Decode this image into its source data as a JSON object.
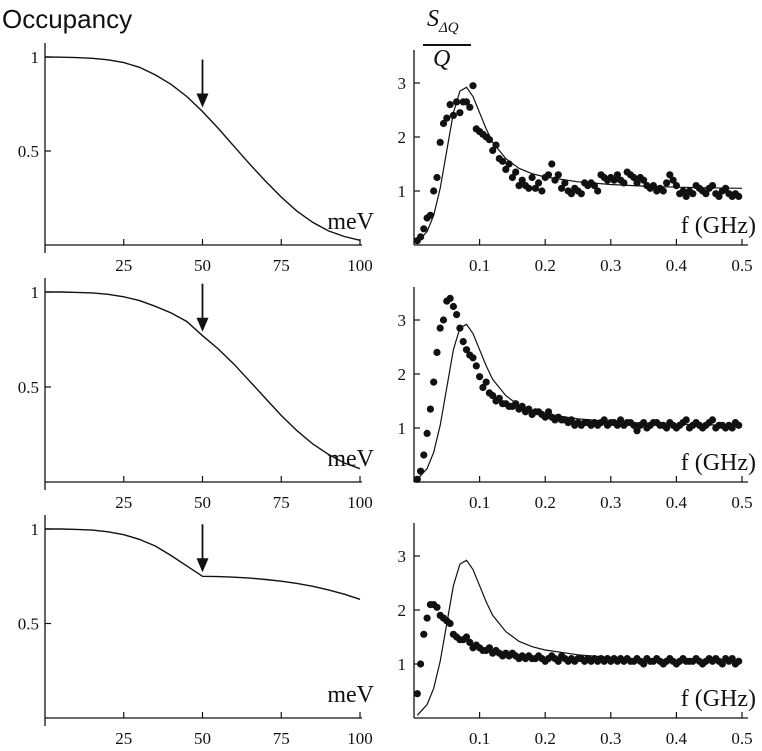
{
  "figure": {
    "title": "Occupancy",
    "right_ylabel": {
      "numerator": "S",
      "subscript": "ΔQ",
      "denominator": "Q"
    }
  },
  "chart_data": [
    {
      "type": "line",
      "panel": "left-top",
      "unit_label": "meV",
      "xlim": [
        0,
        100
      ],
      "ylim": [
        0,
        1
      ],
      "xticks": [
        25,
        50,
        75,
        100
      ],
      "yticks": [
        0.5,
        1
      ],
      "ytick_labels": [
        "0.5",
        "1"
      ],
      "xtick_labels": [
        "25",
        "50",
        "75",
        "100"
      ],
      "arrow_x": 50,
      "series": [
        {
          "x": [
            0,
            5,
            10,
            15,
            20,
            25,
            30,
            35,
            40,
            45,
            50,
            55,
            60,
            65,
            70,
            75,
            80,
            85,
            90,
            95,
            100
          ],
          "values": [
            1.0,
            0.999,
            0.997,
            0.993,
            0.985,
            0.97,
            0.945,
            0.905,
            0.855,
            0.79,
            0.71,
            0.62,
            0.525,
            0.43,
            0.34,
            0.255,
            0.18,
            0.12,
            0.075,
            0.045,
            0.025
          ]
        }
      ]
    },
    {
      "type": "scatter",
      "panel": "right-top",
      "x_label": "f (GHz)",
      "xlim": [
        0,
        0.5
      ],
      "ylim": [
        0,
        3.5
      ],
      "xticks": [
        0.1,
        0.2,
        0.3,
        0.4,
        0.5
      ],
      "yticks": [
        1,
        2,
        3
      ],
      "xtick_labels": [
        "0.1",
        "0.2",
        "0.3",
        "0.4",
        "0.5"
      ],
      "ytick_labels": [
        "1",
        "2",
        "3"
      ],
      "model": {
        "x": [
          0.005,
          0.02,
          0.03,
          0.04,
          0.05,
          0.06,
          0.07,
          0.08,
          0.09,
          0.1,
          0.11,
          0.12,
          0.14,
          0.16,
          0.18,
          0.2,
          0.25,
          0.3,
          0.35,
          0.4,
          0.45,
          0.5
        ],
        "values": [
          0.05,
          0.25,
          0.55,
          1.05,
          1.75,
          2.45,
          2.85,
          2.92,
          2.75,
          2.45,
          2.15,
          1.9,
          1.6,
          1.42,
          1.32,
          1.26,
          1.17,
          1.12,
          1.09,
          1.07,
          1.06,
          1.05
        ]
      },
      "points": {
        "x": [
          0.005,
          0.01,
          0.015,
          0.02,
          0.025,
          0.03,
          0.035,
          0.04,
          0.045,
          0.05,
          0.055,
          0.06,
          0.065,
          0.07,
          0.075,
          0.08,
          0.085,
          0.09,
          0.095,
          0.1,
          0.105,
          0.11,
          0.115,
          0.12,
          0.125,
          0.13,
          0.135,
          0.14,
          0.145,
          0.15,
          0.155,
          0.16,
          0.165,
          0.17,
          0.175,
          0.18,
          0.185,
          0.19,
          0.195,
          0.2,
          0.205,
          0.21,
          0.215,
          0.22,
          0.225,
          0.23,
          0.235,
          0.24,
          0.245,
          0.25,
          0.255,
          0.26,
          0.265,
          0.27,
          0.275,
          0.28,
          0.285,
          0.29,
          0.295,
          0.3,
          0.305,
          0.31,
          0.315,
          0.32,
          0.325,
          0.33,
          0.335,
          0.34,
          0.345,
          0.35,
          0.355,
          0.36,
          0.365,
          0.37,
          0.375,
          0.38,
          0.385,
          0.39,
          0.395,
          0.4,
          0.405,
          0.41,
          0.415,
          0.42,
          0.425,
          0.43,
          0.435,
          0.44,
          0.445,
          0.45,
          0.455,
          0.46,
          0.465,
          0.47,
          0.475,
          0.48,
          0.485,
          0.49,
          0.495
        ],
        "values": [
          0.08,
          0.15,
          0.3,
          0.5,
          0.55,
          1.0,
          1.25,
          1.9,
          2.25,
          2.35,
          2.6,
          2.4,
          2.65,
          2.45,
          2.65,
          2.65,
          2.55,
          2.95,
          2.15,
          2.1,
          2.05,
          2.0,
          1.95,
          1.75,
          1.85,
          1.6,
          1.55,
          1.4,
          1.5,
          1.25,
          1.35,
          1.1,
          1.2,
          1.1,
          1.05,
          1.25,
          1.05,
          1.15,
          1.0,
          1.25,
          1.3,
          1.5,
          1.2,
          1.3,
          1.05,
          1.15,
          1.0,
          0.95,
          1.05,
          1.0,
          0.95,
          1.15,
          1.1,
          1.15,
          1.1,
          1.0,
          1.3,
          1.25,
          1.2,
          1.25,
          1.2,
          1.3,
          1.2,
          1.15,
          1.35,
          1.3,
          1.25,
          1.15,
          1.25,
          1.2,
          1.1,
          1.05,
          1.1,
          1.0,
          1.05,
          1.0,
          1.15,
          1.3,
          1.2,
          1.1,
          0.95,
          1.0,
          0.9,
          1.0,
          0.95,
          1.1,
          1.05,
          1.0,
          0.95,
          1.05,
          1.1,
          0.95,
          0.9,
          1.0,
          1.05,
          0.95,
          0.9,
          0.95,
          0.9
        ]
      }
    },
    {
      "type": "line",
      "panel": "left-middle",
      "unit_label": "meV",
      "xlim": [
        0,
        100
      ],
      "ylim": [
        0,
        1
      ],
      "xticks": [
        25,
        50,
        75,
        100
      ],
      "yticks": [
        0.5,
        1
      ],
      "ytick_labels": [
        "0.5",
        "1"
      ],
      "xtick_labels": [
        "25",
        "50",
        "75",
        "100"
      ],
      "arrow_x": 50,
      "series": [
        {
          "x": [
            0,
            5,
            10,
            15,
            20,
            25,
            30,
            35,
            40,
            45,
            50,
            55,
            60,
            65,
            70,
            75,
            80,
            85,
            90,
            95,
            100
          ],
          "values": [
            1.0,
            1.0,
            0.998,
            0.995,
            0.988,
            0.975,
            0.955,
            0.925,
            0.89,
            0.845,
            0.77,
            0.7,
            0.62,
            0.53,
            0.44,
            0.35,
            0.27,
            0.2,
            0.145,
            0.1,
            0.07
          ]
        }
      ]
    },
    {
      "type": "scatter",
      "panel": "right-middle",
      "x_label": "f (GHz)",
      "xlim": [
        0,
        0.5
      ],
      "ylim": [
        0,
        3.5
      ],
      "xticks": [
        0.1,
        0.2,
        0.3,
        0.4,
        0.5
      ],
      "yticks": [
        1,
        2,
        3
      ],
      "xtick_labels": [
        "0.1",
        "0.2",
        "0.3",
        "0.4",
        "0.5"
      ],
      "ytick_labels": [
        "1",
        "2",
        "3"
      ],
      "model": {
        "x": [
          0.005,
          0.02,
          0.03,
          0.04,
          0.05,
          0.06,
          0.07,
          0.08,
          0.09,
          0.1,
          0.11,
          0.12,
          0.14,
          0.16,
          0.18,
          0.2,
          0.25,
          0.3,
          0.35,
          0.4,
          0.45,
          0.5
        ],
        "values": [
          0.05,
          0.25,
          0.55,
          1.05,
          1.75,
          2.45,
          2.85,
          2.92,
          2.75,
          2.45,
          2.15,
          1.9,
          1.6,
          1.42,
          1.32,
          1.26,
          1.17,
          1.12,
          1.09,
          1.07,
          1.06,
          1.05
        ]
      },
      "points": {
        "x": [
          0.005,
          0.01,
          0.015,
          0.02,
          0.025,
          0.03,
          0.035,
          0.04,
          0.045,
          0.05,
          0.055,
          0.06,
          0.065,
          0.07,
          0.075,
          0.08,
          0.085,
          0.09,
          0.095,
          0.1,
          0.105,
          0.11,
          0.115,
          0.12,
          0.125,
          0.13,
          0.135,
          0.14,
          0.145,
          0.15,
          0.155,
          0.16,
          0.165,
          0.17,
          0.175,
          0.18,
          0.185,
          0.19,
          0.195,
          0.2,
          0.205,
          0.21,
          0.215,
          0.22,
          0.225,
          0.23,
          0.235,
          0.24,
          0.245,
          0.25,
          0.255,
          0.26,
          0.265,
          0.27,
          0.275,
          0.28,
          0.285,
          0.29,
          0.295,
          0.3,
          0.305,
          0.31,
          0.315,
          0.32,
          0.325,
          0.33,
          0.335,
          0.34,
          0.345,
          0.35,
          0.355,
          0.36,
          0.365,
          0.37,
          0.375,
          0.38,
          0.385,
          0.39,
          0.395,
          0.4,
          0.405,
          0.41,
          0.415,
          0.42,
          0.425,
          0.43,
          0.435,
          0.44,
          0.445,
          0.45,
          0.455,
          0.46,
          0.465,
          0.47,
          0.475,
          0.48,
          0.485,
          0.49,
          0.495
        ],
        "values": [
          0.05,
          0.2,
          0.5,
          0.9,
          1.35,
          1.85,
          2.4,
          2.85,
          3.0,
          3.35,
          3.4,
          3.25,
          3.1,
          2.85,
          2.6,
          2.45,
          2.35,
          2.3,
          2.15,
          1.95,
          1.75,
          1.85,
          1.65,
          1.6,
          1.5,
          1.55,
          1.45,
          1.45,
          1.4,
          1.4,
          1.45,
          1.35,
          1.4,
          1.3,
          1.35,
          1.25,
          1.3,
          1.3,
          1.25,
          1.2,
          1.3,
          1.2,
          1.15,
          1.2,
          1.15,
          1.15,
          1.1,
          1.15,
          1.05,
          1.1,
          1.05,
          1.1,
          1.1,
          1.05,
          1.1,
          1.05,
          1.1,
          1.15,
          1.05,
          1.1,
          1.1,
          1.05,
          1.15,
          1.05,
          1.1,
          1.1,
          1.05,
          0.95,
          1.05,
          1.1,
          1.0,
          1.05,
          1.1,
          1.1,
          1.05,
          1.05,
          1.0,
          1.1,
          1.05,
          1.0,
          1.05,
          1.1,
          1.15,
          1.0,
          1.05,
          1.1,
          1.05,
          1.0,
          1.05,
          1.1,
          1.15,
          1.0,
          1.05,
          1.05,
          1.0,
          1.05,
          1.0,
          1.1,
          1.05
        ]
      }
    },
    {
      "type": "line",
      "panel": "left-bottom",
      "unit_label": "meV",
      "xlim": [
        0,
        100
      ],
      "ylim": [
        0,
        1
      ],
      "xticks": [
        25,
        50,
        75,
        100
      ],
      "yticks": [
        0.5,
        1
      ],
      "ytick_labels": [
        "0.5",
        "1"
      ],
      "xtick_labels": [
        "25",
        "50",
        "75",
        "100"
      ],
      "arrow_x": 50,
      "series": [
        {
          "x": [
            0,
            5,
            10,
            15,
            20,
            25,
            30,
            35,
            40,
            45,
            50,
            55,
            60,
            65,
            70,
            75,
            80,
            85,
            90,
            95,
            100
          ],
          "values": [
            1.0,
            1.0,
            0.998,
            0.994,
            0.985,
            0.97,
            0.945,
            0.91,
            0.86,
            0.805,
            0.75,
            0.748,
            0.745,
            0.74,
            0.733,
            0.724,
            0.712,
            0.697,
            0.678,
            0.655,
            0.628
          ]
        }
      ]
    },
    {
      "type": "scatter",
      "panel": "right-bottom",
      "x_label": "f (GHz)",
      "xlim": [
        0,
        0.5
      ],
      "ylim": [
        0,
        3.5
      ],
      "xticks": [
        0.1,
        0.2,
        0.3,
        0.4,
        0.5
      ],
      "yticks": [
        1,
        2,
        3
      ],
      "xtick_labels": [
        "0.1",
        "0.2",
        "0.3",
        "0.4",
        "0.5"
      ],
      "ytick_labels": [
        "1",
        "2",
        "3"
      ],
      "model": {
        "x": [
          0.005,
          0.02,
          0.03,
          0.04,
          0.05,
          0.06,
          0.07,
          0.08,
          0.09,
          0.1,
          0.11,
          0.12,
          0.14,
          0.16,
          0.18,
          0.2,
          0.25,
          0.3,
          0.35,
          0.4,
          0.45,
          0.5
        ],
        "values": [
          0.05,
          0.25,
          0.55,
          1.05,
          1.75,
          2.45,
          2.85,
          2.92,
          2.75,
          2.45,
          2.15,
          1.9,
          1.6,
          1.42,
          1.32,
          1.26,
          1.17,
          1.12,
          1.09,
          1.07,
          1.06,
          1.05
        ]
      },
      "points": {
        "x": [
          0.005,
          0.01,
          0.015,
          0.02,
          0.025,
          0.03,
          0.035,
          0.04,
          0.045,
          0.05,
          0.055,
          0.06,
          0.065,
          0.07,
          0.075,
          0.08,
          0.085,
          0.09,
          0.095,
          0.1,
          0.105,
          0.11,
          0.115,
          0.12,
          0.125,
          0.13,
          0.135,
          0.14,
          0.145,
          0.15,
          0.155,
          0.16,
          0.165,
          0.17,
          0.175,
          0.18,
          0.185,
          0.19,
          0.195,
          0.2,
          0.205,
          0.21,
          0.215,
          0.22,
          0.225,
          0.23,
          0.235,
          0.24,
          0.245,
          0.25,
          0.255,
          0.26,
          0.265,
          0.27,
          0.275,
          0.28,
          0.285,
          0.29,
          0.295,
          0.3,
          0.305,
          0.31,
          0.315,
          0.32,
          0.325,
          0.33,
          0.335,
          0.34,
          0.345,
          0.35,
          0.355,
          0.36,
          0.365,
          0.37,
          0.375,
          0.38,
          0.385,
          0.39,
          0.395,
          0.4,
          0.405,
          0.41,
          0.415,
          0.42,
          0.425,
          0.43,
          0.435,
          0.44,
          0.445,
          0.45,
          0.455,
          0.46,
          0.465,
          0.47,
          0.475,
          0.48,
          0.485,
          0.49,
          0.495
        ],
        "values": [
          0.45,
          1.0,
          1.55,
          1.85,
          2.1,
          2.1,
          2.05,
          1.9,
          1.85,
          1.8,
          1.75,
          1.55,
          1.5,
          1.45,
          1.45,
          1.5,
          1.4,
          1.3,
          1.35,
          1.3,
          1.25,
          1.25,
          1.3,
          1.2,
          1.25,
          1.2,
          1.15,
          1.2,
          1.15,
          1.2,
          1.15,
          1.1,
          1.15,
          1.1,
          1.15,
          1.1,
          1.1,
          1.15,
          1.1,
          1.05,
          1.1,
          1.15,
          1.1,
          1.05,
          1.15,
          1.1,
          1.05,
          1.1,
          1.05,
          1.1,
          1.1,
          1.05,
          1.1,
          1.05,
          1.1,
          1.05,
          1.1,
          1.05,
          1.1,
          1.05,
          1.1,
          1.05,
          1.1,
          1.05,
          1.1,
          1.05,
          1.05,
          1.1,
          1.05,
          1.0,
          1.1,
          1.05,
          1.05,
          1.1,
          1.05,
          1.0,
          1.05,
          1.1,
          1.05,
          1.0,
          1.05,
          1.1,
          1.05,
          1.05,
          1.05,
          1.1,
          1.05,
          1.0,
          1.05,
          1.1,
          1.05,
          1.1,
          1.05,
          1.0,
          1.1,
          1.05,
          1.1,
          1.0,
          1.05
        ]
      }
    }
  ]
}
